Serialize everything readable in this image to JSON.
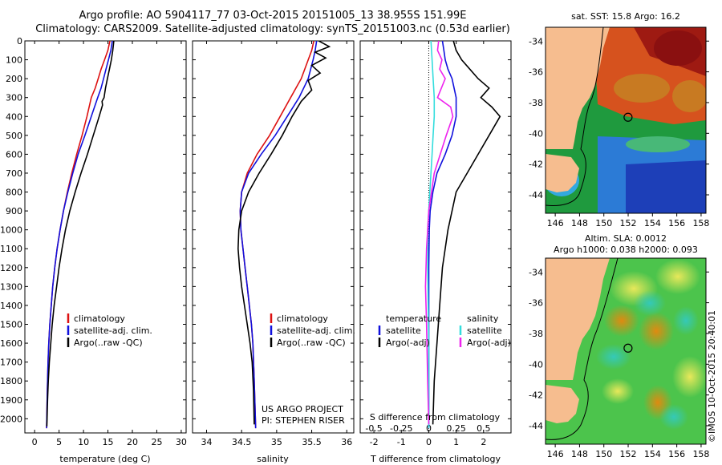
{
  "title_line1": "Argo profile: AO 5904117_77 03-Oct-2015 20151005_13 38.955S 151.99E",
  "title_line2": "Climatology: CARS2009. Satellite-adjusted climatology: synTS_20151003.nc (0.53d earlier)",
  "sst_title": "sat. SST: 15.8 Argo: 16.2",
  "sla_title1": "Altim. SLA: 0.0012",
  "sla_title2": "Argo h1000: 0.038 h2000: 0.093",
  "credit": "©IMOS 10-Oct-2015 20:40:01",
  "project_line1": "US ARGO PROJECT",
  "project_line2": "PI: STEPHEN RISER",
  "colors": {
    "climatology": "#dd1111",
    "satellite": "#1010dd",
    "argo": "#000000",
    "satellite_s": "#33dddd",
    "argo_s": "#ee22ee",
    "land": "#f6bd8f",
    "sla_bg": "#4cc44c"
  },
  "chart_data": [
    {
      "type": "line",
      "id": "temperature",
      "xlabel": "temperature (deg C)",
      "ylabel": "",
      "xlim": [
        -2,
        31
      ],
      "ylim": [
        2075,
        0
      ],
      "xticks": [
        0,
        5,
        10,
        15,
        20,
        25,
        30
      ],
      "yticks": [
        0,
        100,
        200,
        300,
        400,
        500,
        600,
        700,
        800,
        900,
        1000,
        1100,
        1200,
        1300,
        1400,
        1500,
        1600,
        1700,
        1800,
        1900,
        2000
      ],
      "legend": [
        "climatology",
        "satellite-adj. clim.",
        "Argo(..raw -QC)"
      ],
      "legend_position": "lower-middle",
      "series": [
        {
          "name": "climatology",
          "color": "#dd1111",
          "x": [
            15.4,
            15.0,
            14.3,
            13.6,
            13.0,
            12.4,
            11.6,
            10.7,
            9.7,
            8.6,
            7.6,
            6.7,
            5.9,
            5.2,
            4.6,
            4.1,
            3.7,
            3.4,
            3.1,
            2.9,
            2.75,
            2.6,
            2.45
          ],
          "y": [
            0,
            50,
            100,
            150,
            200,
            250,
            300,
            400,
            500,
            600,
            700,
            800,
            900,
            1000,
            1100,
            1200,
            1300,
            1400,
            1500,
            1600,
            1700,
            1850,
            2050
          ]
        },
        {
          "name": "satellite-adj. clim.",
          "color": "#1010dd",
          "x": [
            15.9,
            15.6,
            15.1,
            14.6,
            14.1,
            13.6,
            12.9,
            11.6,
            10.3,
            8.9,
            7.8,
            6.8,
            5.9,
            5.2,
            4.6,
            4.1,
            3.7,
            3.4,
            3.1,
            2.9,
            2.75,
            2.6,
            2.45
          ],
          "y": [
            0,
            50,
            100,
            150,
            200,
            250,
            300,
            400,
            500,
            600,
            700,
            800,
            900,
            1000,
            1100,
            1200,
            1300,
            1400,
            1500,
            1600,
            1700,
            1850,
            2050
          ]
        },
        {
          "name": "Argo(..raw -QC)",
          "color": "#000000",
          "x": [
            16.2,
            16.0,
            15.7,
            15.3,
            14.9,
            14.5,
            14.2,
            13.8,
            13.9,
            13.2,
            12.0,
            10.8,
            9.5,
            8.3,
            7.2,
            6.3,
            5.6,
            5.0,
            4.5,
            4.0,
            3.6,
            3.3,
            3.0,
            2.8,
            2.65,
            2.5
          ],
          "y": [
            0,
            50,
            100,
            150,
            200,
            250,
            300,
            320,
            340,
            400,
            500,
            600,
            700,
            800,
            900,
            1000,
            1100,
            1200,
            1300,
            1400,
            1500,
            1600,
            1700,
            1800,
            1900,
            2040
          ]
        }
      ]
    },
    {
      "type": "line",
      "id": "salinity",
      "xlabel": "salinity",
      "ylabel": "",
      "xlim": [
        33.8,
        36.1
      ],
      "ylim": [
        2075,
        0
      ],
      "xticks": [
        34,
        34.5,
        35,
        35.5,
        36
      ],
      "yticks": [],
      "legend": [
        "climatology",
        "satellite-adj. clim.",
        "Argo(..raw -QC)"
      ],
      "legend_position": "lower-right",
      "series": [
        {
          "name": "climatology",
          "color": "#dd1111",
          "x": [
            35.53,
            35.5,
            35.45,
            35.35,
            35.2,
            35.05,
            34.9,
            34.72,
            34.58,
            34.5,
            34.48,
            34.49,
            34.52,
            34.55,
            34.58,
            34.61,
            34.64,
            34.66,
            34.68,
            34.7
          ],
          "y": [
            0,
            50,
            100,
            200,
            300,
            400,
            500,
            600,
            700,
            800,
            900,
            1000,
            1100,
            1200,
            1300,
            1400,
            1500,
            1600,
            1800,
            2050
          ]
        },
        {
          "name": "satellite-adj. clim.",
          "color": "#1010dd",
          "x": [
            35.57,
            35.55,
            35.52,
            35.45,
            35.32,
            35.15,
            34.98,
            34.78,
            34.6,
            34.5,
            34.48,
            34.49,
            34.52,
            34.55,
            34.58,
            34.61,
            34.64,
            34.66,
            34.68,
            34.7
          ],
          "y": [
            0,
            50,
            100,
            200,
            300,
            400,
            500,
            600,
            700,
            800,
            900,
            1000,
            1100,
            1200,
            1300,
            1400,
            1500,
            1600,
            1800,
            2050
          ]
        },
        {
          "name": "Argo(..raw -QC)",
          "color": "#000000",
          "x": [
            35.6,
            35.75,
            35.55,
            35.7,
            35.5,
            35.62,
            35.45,
            35.5,
            35.35,
            35.22,
            35.08,
            34.92,
            34.75,
            34.6,
            34.5,
            34.46,
            34.45,
            34.47,
            34.5,
            34.54,
            34.58,
            34.62,
            34.65,
            34.67,
            34.68
          ],
          "y": [
            0,
            30,
            60,
            90,
            130,
            170,
            210,
            260,
            320,
            400,
            500,
            600,
            700,
            800,
            900,
            1000,
            1100,
            1200,
            1300,
            1400,
            1500,
            1600,
            1700,
            1850,
            2030
          ]
        }
      ]
    },
    {
      "type": "line",
      "id": "difference",
      "xlabel": "T difference from climatology",
      "xlabel_top": "S difference from climatology",
      "ylabel": "",
      "xlim": [
        -2.5,
        3
      ],
      "ylim": [
        2075,
        0
      ],
      "xticks": [
        -2,
        -1,
        0,
        1,
        2
      ],
      "xticks_top": [
        "-0.5",
        "-0.25",
        "0",
        "0.25",
        "0.5"
      ],
      "yticks": [],
      "legend": [
        "temperature",
        "satellite",
        "Argo(-adj)",
        "salinity",
        "satellite",
        "Argo(-adj)"
      ],
      "legend_position": "lower",
      "series": [
        {
          "name": "satellite",
          "color": "#1010dd",
          "x": [
            0.5,
            0.55,
            0.6,
            0.7,
            0.85,
            1.0,
            1.0,
            0.85,
            0.6,
            0.3,
            0.15,
            0.05,
            0.02,
            0.0,
            0.0,
            0.0
          ],
          "y": [
            0,
            50,
            100,
            150,
            200,
            300,
            400,
            500,
            600,
            700,
            800,
            900,
            1000,
            1200,
            1600,
            2050
          ]
        },
        {
          "name": "Argo(-adj)",
          "color": "#000000",
          "x": [
            0.9,
            1.0,
            1.2,
            1.5,
            1.8,
            2.2,
            1.9,
            2.3,
            2.6,
            2.2,
            1.8,
            1.4,
            1.0,
            0.7,
            0.5,
            0.4,
            0.3,
            0.2,
            0.15
          ],
          "y": [
            0,
            50,
            100,
            150,
            200,
            250,
            300,
            350,
            400,
            500,
            600,
            700,
            800,
            1000,
            1200,
            1400,
            1600,
            1800,
            2030
          ]
        },
        {
          "name": "satellite",
          "color": "#33dddd",
          "x": [
            0.02,
            0.03,
            0.04,
            0.05,
            0.05,
            0.04,
            0.03,
            0.01,
            -0.01,
            -0.01,
            0.0,
            0.0
          ],
          "y": [
            0,
            100,
            200,
            300,
            400,
            500,
            600,
            800,
            1000,
            1200,
            1600,
            2050
          ]
        },
        {
          "name": "Argo(-adj)",
          "color": "#ee22ee",
          "x": [
            0.09,
            0.08,
            0.12,
            0.1,
            0.15,
            0.08,
            0.2,
            0.22,
            0.16,
            0.05,
            0.0,
            -0.02,
            -0.03,
            -0.02,
            -0.01,
            0.0
          ],
          "y": [
            0,
            50,
            100,
            150,
            200,
            300,
            350,
            400,
            500,
            700,
            900,
            1100,
            1300,
            1500,
            1800,
            2030
          ]
        }
      ]
    },
    {
      "type": "heatmap",
      "id": "sst_map",
      "title": "sat. SST: 15.8 Argo: 16.2",
      "xticks": [
        146,
        148,
        150,
        152,
        154,
        156,
        158
      ],
      "yticks": [
        -34,
        -36,
        -38,
        -40,
        -42,
        -44
      ],
      "xlim": [
        145.2,
        158.4
      ],
      "ylim": [
        -45.2,
        -33.1
      ],
      "argo_position": [
        151.99,
        -38.955
      ]
    },
    {
      "type": "heatmap",
      "id": "sla_map",
      "title": "Altim. SLA: 0.0012",
      "xticks": [
        146,
        148,
        150,
        152,
        154,
        156,
        158
      ],
      "yticks": [
        -34,
        -36,
        -38,
        -40,
        -42,
        -44
      ],
      "xlim": [
        145.2,
        158.4
      ],
      "ylim": [
        -45.2,
        -33.1
      ],
      "argo_position": [
        151.99,
        -38.955
      ]
    }
  ]
}
